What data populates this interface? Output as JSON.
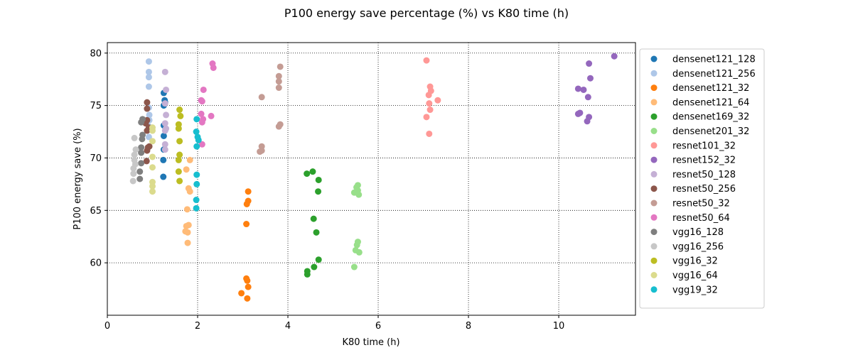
{
  "chart_data": {
    "type": "scatter",
    "title": "P100 energy save percentage (%) vs K80 time (h)",
    "xlabel": "K80 time (h)",
    "ylabel": "P100 energy save (%)",
    "xlim": [
      0,
      11.7
    ],
    "ylim": [
      55,
      81
    ],
    "xticks": [
      0,
      2,
      4,
      6,
      8,
      10
    ],
    "yticks": [
      60,
      65,
      70,
      75,
      80
    ],
    "grid": true,
    "grid_style": "dotted",
    "legend_position": "right-outside",
    "series": [
      {
        "name": "densenet121_128",
        "color": "#1f77b4",
        "points": [
          [
            1.25,
            76.2
          ],
          [
            1.27,
            75.5
          ],
          [
            1.25,
            75.0
          ],
          [
            1.28,
            75.3
          ],
          [
            1.25,
            73.1
          ],
          [
            1.25,
            72.1
          ],
          [
            1.25,
            70.8
          ],
          [
            1.24,
            69.8
          ],
          [
            1.24,
            68.2
          ]
        ]
      },
      {
        "name": "densenet121_256",
        "color": "#aec7e8",
        "points": [
          [
            0.92,
            79.2
          ],
          [
            0.92,
            78.2
          ],
          [
            0.92,
            77.7
          ],
          [
            0.92,
            76.8
          ],
          [
            0.92,
            74.8
          ],
          [
            0.93,
            74.1
          ],
          [
            0.93,
            73.6
          ],
          [
            0.92,
            73.0
          ],
          [
            0.92,
            72.0
          ]
        ]
      },
      {
        "name": "densenet121_32",
        "color": "#ff7f0e",
        "points": [
          [
            3.12,
            66.8
          ],
          [
            3.12,
            65.9
          ],
          [
            3.09,
            65.6
          ],
          [
            3.08,
            63.7
          ],
          [
            3.08,
            58.5
          ],
          [
            3.1,
            58.3
          ],
          [
            3.12,
            57.7
          ],
          [
            2.97,
            57.1
          ],
          [
            3.1,
            56.6
          ]
        ]
      },
      {
        "name": "densenet121_64",
        "color": "#ffbb78",
        "points": [
          [
            1.83,
            69.8
          ],
          [
            1.75,
            68.9
          ],
          [
            1.8,
            67.1
          ],
          [
            1.83,
            66.8
          ],
          [
            1.77,
            65.1
          ],
          [
            1.8,
            63.6
          ],
          [
            1.75,
            63.5
          ],
          [
            1.73,
            63.0
          ],
          [
            1.78,
            62.9
          ],
          [
            1.78,
            61.9
          ]
        ]
      },
      {
        "name": "densenet169_32",
        "color": "#2ca02c",
        "points": [
          [
            4.55,
            68.7
          ],
          [
            4.42,
            68.5
          ],
          [
            4.68,
            67.9
          ],
          [
            4.67,
            66.8
          ],
          [
            4.57,
            64.2
          ],
          [
            4.63,
            62.9
          ],
          [
            4.68,
            60.3
          ],
          [
            4.58,
            59.6
          ],
          [
            4.43,
            59.2
          ],
          [
            4.43,
            58.9
          ]
        ]
      },
      {
        "name": "densenet201_32",
        "color": "#98df8a",
        "points": [
          [
            5.55,
            67.4
          ],
          [
            5.52,
            67.2
          ],
          [
            5.55,
            66.9
          ],
          [
            5.47,
            66.7
          ],
          [
            5.57,
            66.5
          ],
          [
            5.55,
            62.0
          ],
          [
            5.53,
            61.7
          ],
          [
            5.5,
            61.2
          ],
          [
            5.58,
            61.0
          ],
          [
            5.47,
            59.6
          ]
        ]
      },
      {
        "name": "resnet101_32",
        "color": "#ff9896",
        "points": [
          [
            7.07,
            79.3
          ],
          [
            7.15,
            76.8
          ],
          [
            7.17,
            76.4
          ],
          [
            7.12,
            76.0
          ],
          [
            7.32,
            75.5
          ],
          [
            7.13,
            75.2
          ],
          [
            7.15,
            74.6
          ],
          [
            7.07,
            73.9
          ],
          [
            7.13,
            72.3
          ]
        ]
      },
      {
        "name": "resnet152_32",
        "color": "#9467bd",
        "points": [
          [
            11.23,
            79.7
          ],
          [
            10.67,
            79.0
          ],
          [
            10.7,
            77.6
          ],
          [
            10.43,
            76.6
          ],
          [
            10.55,
            76.5
          ],
          [
            10.65,
            75.8
          ],
          [
            10.47,
            74.3
          ],
          [
            10.43,
            74.2
          ],
          [
            10.67,
            73.9
          ],
          [
            10.63,
            73.5
          ]
        ]
      },
      {
        "name": "resnet50_128",
        "color": "#c5b0d5",
        "points": [
          [
            1.28,
            78.2
          ],
          [
            1.3,
            76.5
          ],
          [
            1.28,
            75.2
          ],
          [
            1.3,
            74.1
          ],
          [
            1.28,
            73.3
          ],
          [
            1.3,
            72.8
          ],
          [
            1.28,
            72.6
          ],
          [
            1.28,
            71.3
          ],
          [
            1.28,
            70.8
          ]
        ]
      },
      {
        "name": "resnet50_256",
        "color": "#8c564b",
        "points": [
          [
            0.88,
            75.3
          ],
          [
            0.88,
            74.7
          ],
          [
            0.88,
            73.6
          ],
          [
            0.85,
            73.3
          ],
          [
            0.92,
            72.9
          ],
          [
            0.88,
            72.6
          ],
          [
            0.93,
            71.1
          ],
          [
            0.9,
            71.0
          ],
          [
            0.88,
            70.7
          ],
          [
            0.87,
            69.7
          ]
        ]
      },
      {
        "name": "resnet50_32",
        "color": "#c49c94",
        "points": [
          [
            3.83,
            78.7
          ],
          [
            3.8,
            77.8
          ],
          [
            3.8,
            77.3
          ],
          [
            3.8,
            76.7
          ],
          [
            3.42,
            75.8
          ],
          [
            3.83,
            73.2
          ],
          [
            3.8,
            73.0
          ],
          [
            3.42,
            71.1
          ],
          [
            3.42,
            70.7
          ],
          [
            3.38,
            70.6
          ]
        ]
      },
      {
        "name": "resnet50_64",
        "color": "#e377c2",
        "points": [
          [
            2.33,
            79.0
          ],
          [
            2.35,
            78.6
          ],
          [
            2.13,
            76.5
          ],
          [
            2.08,
            75.5
          ],
          [
            2.1,
            75.4
          ],
          [
            2.08,
            74.2
          ],
          [
            2.3,
            74.0
          ],
          [
            2.12,
            73.7
          ],
          [
            2.1,
            73.4
          ],
          [
            2.1,
            71.3
          ]
        ]
      },
      {
        "name": "vgg16_128",
        "color": "#7f7f7f",
        "points": [
          [
            0.78,
            73.7
          ],
          [
            0.75,
            73.4
          ],
          [
            0.78,
            72.2
          ],
          [
            0.77,
            71.8
          ],
          [
            0.75,
            71.0
          ],
          [
            0.75,
            70.5
          ],
          [
            0.75,
            69.5
          ],
          [
            0.72,
            68.7
          ],
          [
            0.72,
            68.0
          ]
        ]
      },
      {
        "name": "vgg16_256",
        "color": "#c7c7c7",
        "points": [
          [
            0.6,
            71.9
          ],
          [
            0.63,
            70.8
          ],
          [
            0.6,
            70.3
          ],
          [
            0.6,
            69.8
          ],
          [
            0.62,
            69.4
          ],
          [
            0.58,
            69.0
          ],
          [
            0.58,
            68.5
          ],
          [
            0.57,
            67.8
          ]
        ]
      },
      {
        "name": "vgg16_32",
        "color": "#bcbd22",
        "points": [
          [
            1.6,
            74.6
          ],
          [
            1.62,
            74.0
          ],
          [
            1.58,
            73.2
          ],
          [
            1.58,
            72.8
          ],
          [
            1.6,
            71.6
          ],
          [
            1.6,
            70.3
          ],
          [
            1.58,
            69.8
          ],
          [
            1.58,
            68.7
          ],
          [
            1.6,
            67.8
          ]
        ]
      },
      {
        "name": "vgg16_64",
        "color": "#dbdb8d",
        "points": [
          [
            1.0,
            72.9
          ],
          [
            1.0,
            72.6
          ],
          [
            1.0,
            71.6
          ],
          [
            1.0,
            70.1
          ],
          [
            1.0,
            69.1
          ],
          [
            1.0,
            67.7
          ],
          [
            1.0,
            67.3
          ],
          [
            1.0,
            66.8
          ]
        ]
      },
      {
        "name": "vgg19_32",
        "color": "#17becf",
        "points": [
          [
            1.98,
            73.7
          ],
          [
            1.97,
            72.5
          ],
          [
            2.0,
            72.0
          ],
          [
            2.02,
            71.7
          ],
          [
            1.98,
            71.1
          ],
          [
            1.98,
            68.4
          ],
          [
            1.98,
            67.5
          ],
          [
            1.97,
            66.0
          ],
          [
            1.97,
            65.2
          ]
        ]
      }
    ]
  }
}
